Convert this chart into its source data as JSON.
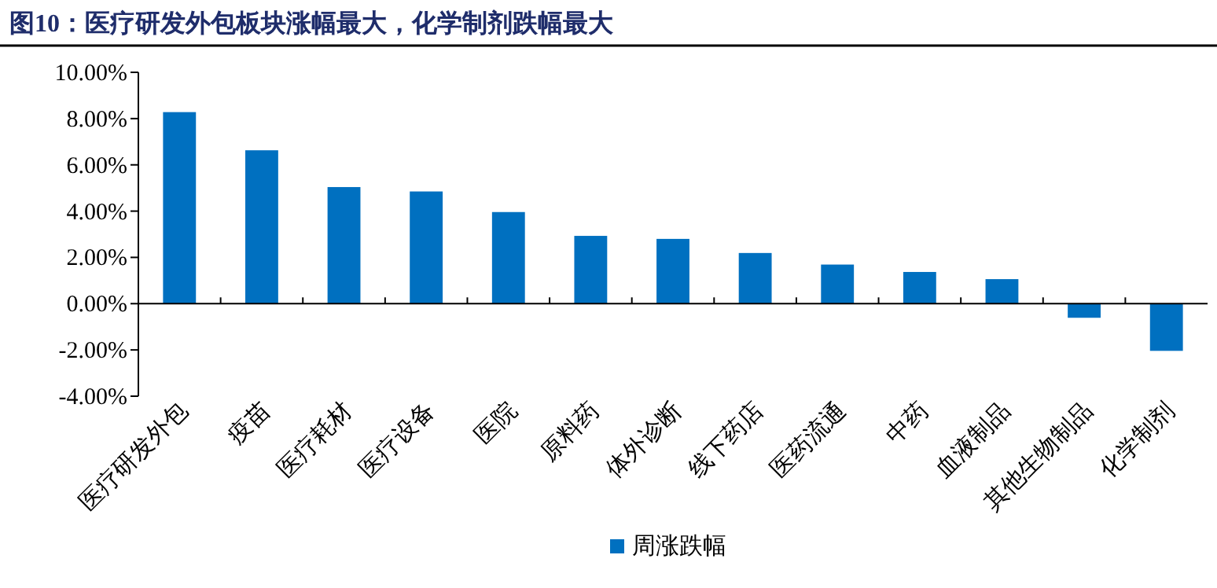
{
  "chart_data": {
    "type": "bar",
    "title": "图10：医疗研发外包板块涨幅最大，化学制剂跌幅最大",
    "categories": [
      "医疗研发外包",
      "疫苗",
      "医疗耗材",
      "医疗设备",
      "医院",
      "原料药",
      "体外诊断",
      "线下药店",
      "医药流通",
      "中药",
      "血液制品",
      "其他生物制品",
      "化学制剂"
    ],
    "series": [
      {
        "name": "周涨跌幅",
        "color": "#0070c0",
        "values": [
          8.28,
          6.63,
          5.04,
          4.85,
          3.96,
          2.93,
          2.8,
          2.19,
          1.69,
          1.37,
          1.06,
          -0.61,
          -2.04
        ]
      }
    ],
    "ylim": [
      -4,
      10
    ],
    "yticks": [
      {
        "value": -4,
        "label": "-4.00%"
      },
      {
        "value": -2,
        "label": "-2.00%"
      },
      {
        "value": 0,
        "label": "0.00%"
      },
      {
        "value": 2,
        "label": "2.00%"
      },
      {
        "value": 4,
        "label": "4.00%"
      },
      {
        "value": 6,
        "label": "6.00%"
      },
      {
        "value": 8,
        "label": "8.00%"
      },
      {
        "value": 10,
        "label": "10.00%"
      }
    ],
    "legend": "bottom"
  }
}
